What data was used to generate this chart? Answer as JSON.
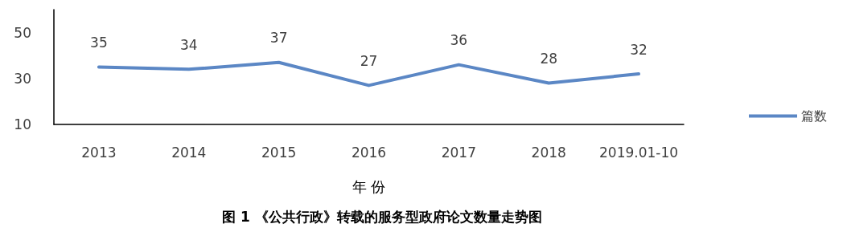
{
  "chart_data": {
    "type": "line",
    "title": "图 1 《公共行政》转载的服务型政府论文数量走势图",
    "xlabel": "年 份",
    "categories": [
      "2013",
      "2014",
      "2015",
      "2016",
      "2017",
      "2018",
      "2019.01-10"
    ],
    "series": [
      {
        "name": "篇数",
        "color": "#5b87c5",
        "values": [
          35,
          34,
          37,
          27,
          36,
          28,
          32
        ]
      }
    ],
    "ylim": [
      10,
      60
    ],
    "yticks": [
      10,
      30,
      50
    ],
    "data_labels": true,
    "grid": false,
    "legend": "right",
    "marker": "none",
    "line_style": "solid"
  }
}
